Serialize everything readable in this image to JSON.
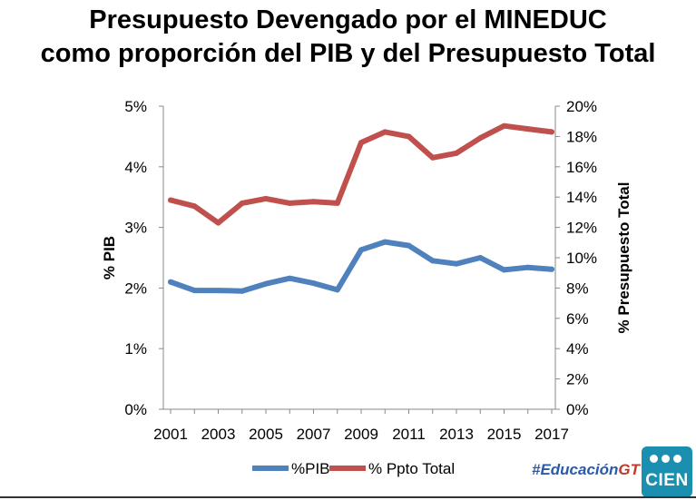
{
  "chart_data": {
    "type": "line",
    "title_line1": "Presupuesto Devengado por el MINEDUC",
    "title_line2": "como proporción del PIB y del Presupuesto Total",
    "ylabel_left": "% PIB",
    "ylabel_right": "% Presupuesto Total",
    "xlabel": "",
    "ylim_left": [
      0,
      5
    ],
    "ylim_right": [
      0,
      20
    ],
    "y_ticks_left": [
      "0%",
      "1%",
      "2%",
      "3%",
      "4%",
      "5%"
    ],
    "y_ticks_right": [
      "0%",
      "2%",
      "4%",
      "6%",
      "8%",
      "10%",
      "12%",
      "14%",
      "16%",
      "18%",
      "20%"
    ],
    "x": [
      2001,
      2002,
      2003,
      2004,
      2005,
      2006,
      2007,
      2008,
      2009,
      2010,
      2011,
      2012,
      2013,
      2014,
      2015,
      2016,
      2017
    ],
    "x_tick_labels": [
      "2001",
      "2003",
      "2005",
      "2007",
      "2009",
      "2011",
      "2013",
      "2015",
      "2017"
    ],
    "series": [
      {
        "name": "%PIB",
        "axis": "left",
        "color": "#4f81bd",
        "values": [
          2.1,
          1.96,
          1.96,
          1.95,
          2.07,
          2.16,
          2.08,
          1.97,
          2.63,
          2.76,
          2.7,
          2.45,
          2.4,
          2.5,
          2.3,
          2.34,
          2.31
        ]
      },
      {
        "name": "% Ppto Total",
        "axis": "right",
        "color": "#c0504d",
        "values": [
          13.8,
          13.4,
          12.3,
          13.6,
          13.9,
          13.6,
          13.7,
          13.6,
          17.6,
          18.3,
          18.0,
          16.6,
          16.9,
          17.9,
          18.7,
          18.5,
          18.3
        ]
      }
    ]
  },
  "footer": {
    "hashtag_main": "#Educación",
    "hashtag_accent": "GT",
    "logo_text": "CIEN"
  }
}
